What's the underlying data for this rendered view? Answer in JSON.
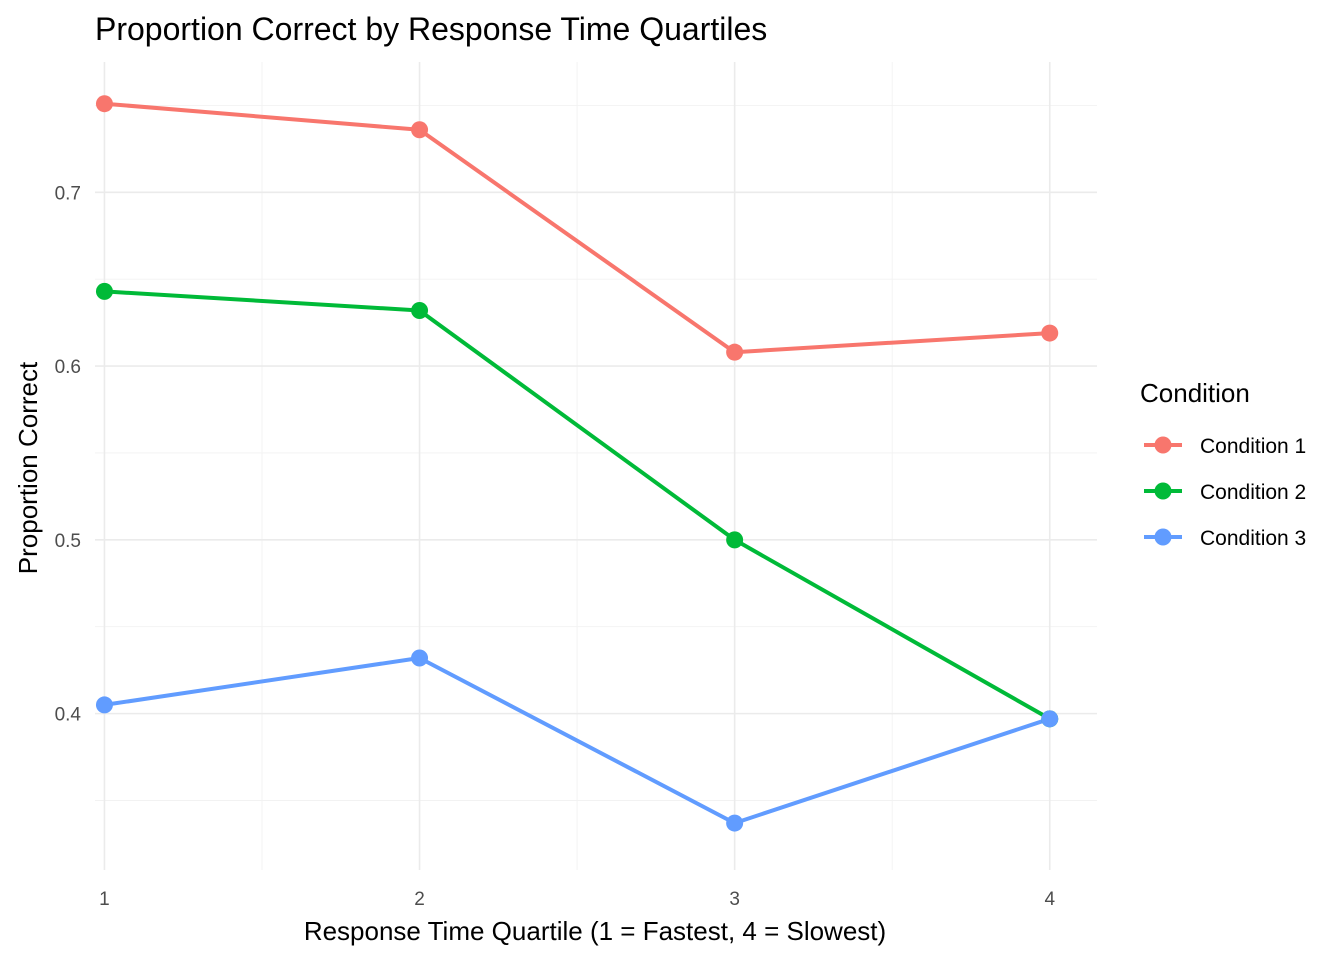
{
  "chart_data": {
    "type": "line",
    "title": "Proportion Correct by Response Time Quartiles",
    "xlabel": "Response Time Quartile (1 = Fastest, 4 = Slowest)",
    "ylabel": "Proportion Correct",
    "x": [
      1,
      2,
      3,
      4
    ],
    "xticks": [
      "1",
      "2",
      "3",
      "4"
    ],
    "xlim": [
      0.97,
      4.15
    ],
    "ylim": [
      0.31,
      0.775
    ],
    "yticks": [
      0.4,
      0.5,
      0.6,
      0.7
    ],
    "ytick_labels": [
      "0.4",
      "0.5",
      "0.6",
      "0.7"
    ],
    "grid": true,
    "legend": {
      "title": "Condition",
      "placement": "right"
    },
    "series": [
      {
        "name": "Condition 1",
        "color": "#F8766D",
        "values": [
          0.751,
          0.736,
          0.608,
          0.619
        ]
      },
      {
        "name": "Condition 2",
        "color": "#00BA38",
        "values": [
          0.643,
          0.632,
          0.5,
          0.397
        ]
      },
      {
        "name": "Condition 3",
        "color": "#619CFF",
        "values": [
          0.405,
          0.432,
          0.337,
          0.397
        ]
      }
    ]
  }
}
